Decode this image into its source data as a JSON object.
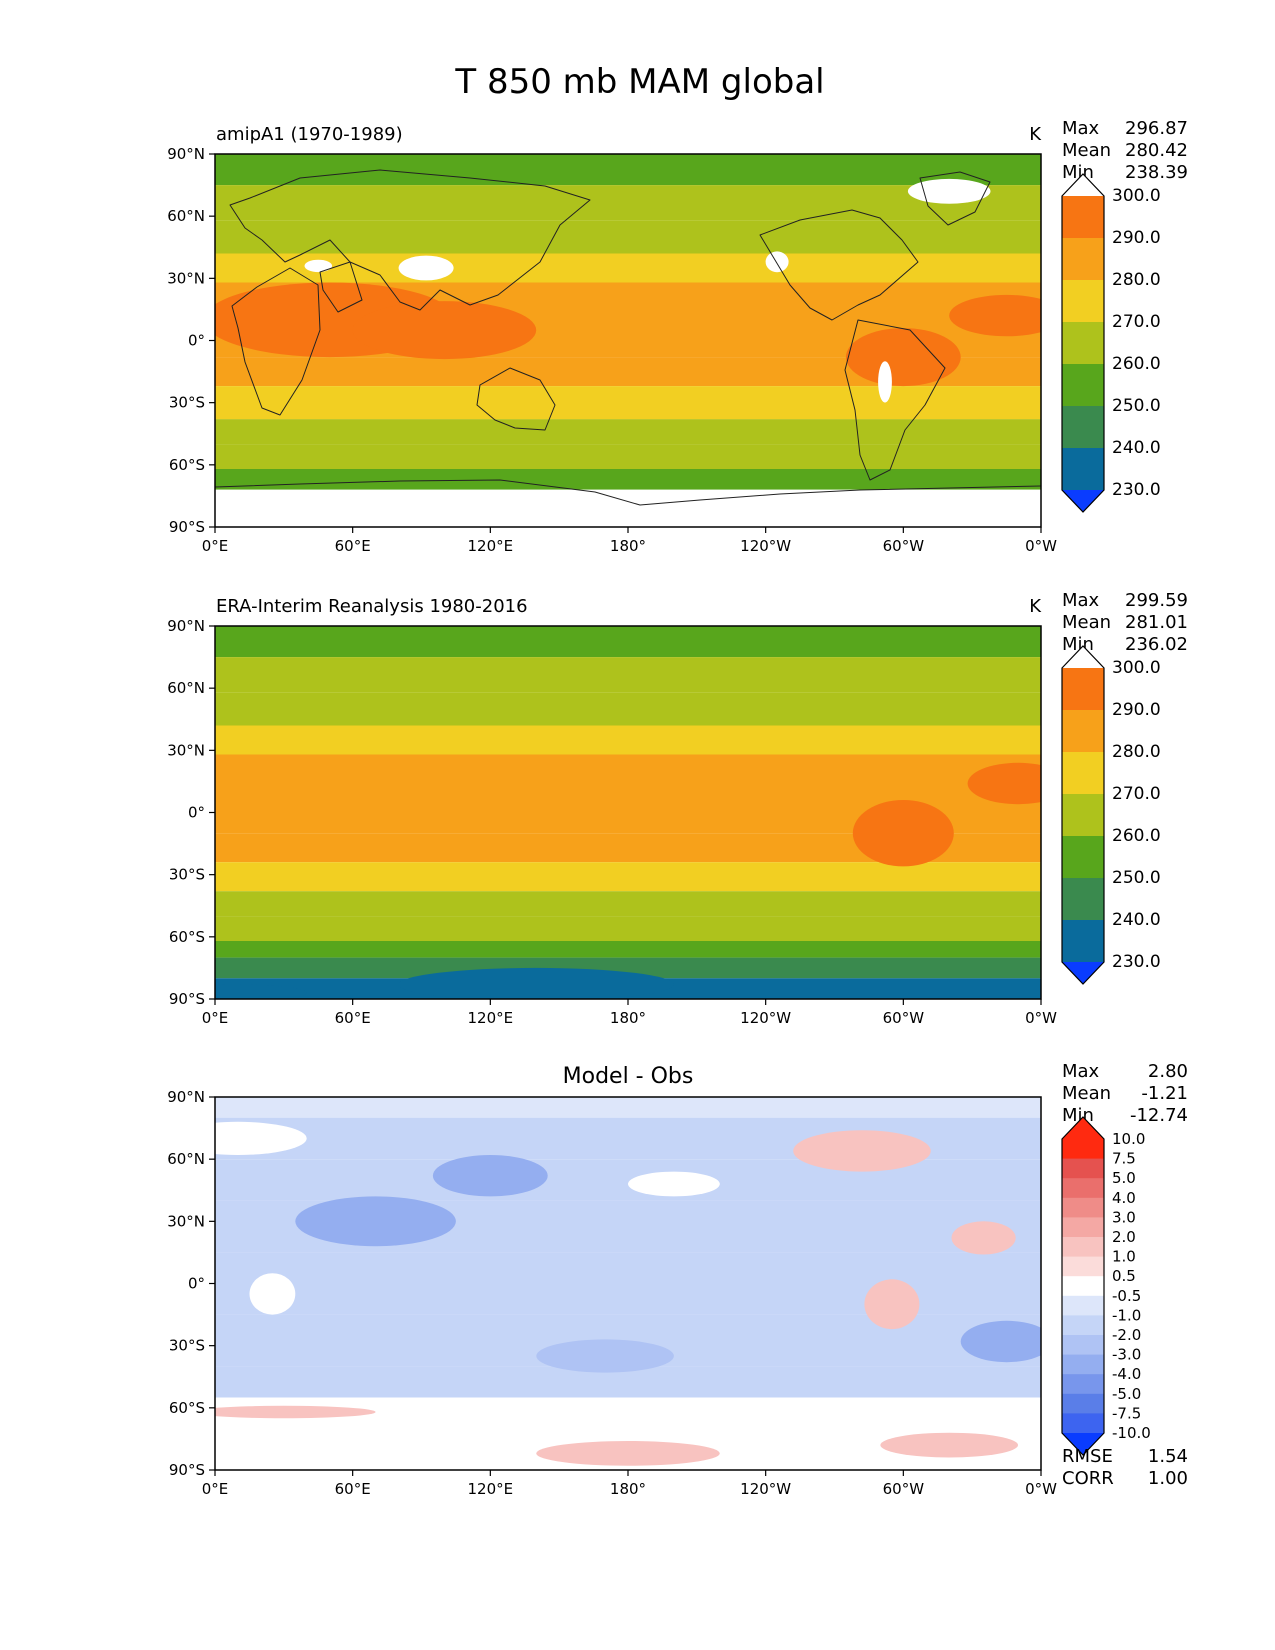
{
  "figure": {
    "title": "T 850 mb MAM global"
  },
  "axes": {
    "x_ticks": [
      "0°E",
      "60°E",
      "120°E",
      "180°",
      "120°W",
      "60°W",
      "0°W"
    ],
    "y_ticks": [
      "90°N",
      "60°N",
      "30°N",
      "0°",
      "30°S",
      "60°S",
      "90°S"
    ]
  },
  "colors": {
    "field": [
      "#0a3cff",
      "#0a6b9c",
      "#3a8a4e",
      "#58a61c",
      "#aec21c",
      "#f2cf22",
      "#f7a11a",
      "#f77513",
      "#ff2a10",
      "#ffffff"
    ],
    "diff": [
      "#0a3cff",
      "#3d64f0",
      "#5a7ee8",
      "#7896ec",
      "#94aef0",
      "#afc3f4",
      "#c5d5f7",
      "#dde6fa",
      "#ffffff",
      "#fbdcda",
      "#f8c3c0",
      "#f4a8a4",
      "#ef8c88",
      "#ea6f6c",
      "#e5524f",
      "#ff2a10"
    ]
  },
  "chart_data": [
    {
      "type": "heatmap",
      "title": "amipA1 (1970-1989)",
      "units": "K",
      "stats": {
        "max_label": "Max",
        "max": "296.87",
        "mean_label": "Mean",
        "mean": "280.42",
        "min_label": "Min",
        "min": "238.39"
      },
      "colorbar": {
        "levels": [
          230,
          240,
          250,
          260,
          270,
          280,
          290,
          300
        ],
        "labels": [
          "230.0",
          "240.0",
          "250.0",
          "260.0",
          "270.0",
          "280.0",
          "290.0",
          "300.0"
        ]
      },
      "bands": [
        {
          "lat": [
            75,
            90
          ],
          "value": 252
        },
        {
          "lat": [
            58,
            75
          ],
          "value": 262
        },
        {
          "lat": [
            42,
            58
          ],
          "value": 267
        },
        {
          "lat": [
            28,
            42
          ],
          "value": 275
        },
        {
          "lat": [
            -8,
            28
          ],
          "value": 285
        },
        {
          "lat": [
            -22,
            -8
          ],
          "value": 282
        },
        {
          "lat": [
            -38,
            -22
          ],
          "value": 276
        },
        {
          "lat": [
            -50,
            -38
          ],
          "value": 269
        },
        {
          "lat": [
            -62,
            -50
          ],
          "value": 262
        },
        {
          "lat": [
            -72,
            -62
          ],
          "value": 256
        },
        {
          "lat": [
            -90,
            -72
          ],
          "value": null
        }
      ],
      "blobs": [
        {
          "lon": 50,
          "lat": 10,
          "rlon": 55,
          "rlat": 18,
          "value": 292
        },
        {
          "lon": 100,
          "lat": 5,
          "rlon": 40,
          "rlat": 14,
          "value": 292
        },
        {
          "lon": 300,
          "lat": -8,
          "rlon": 25,
          "rlat": 14,
          "value": 291
        },
        {
          "lon": 345,
          "lat": 12,
          "rlon": 25,
          "rlat": 10,
          "value": 292
        },
        {
          "lon": 320,
          "lat": 72,
          "rlon": 18,
          "rlat": 6,
          "value": null
        },
        {
          "lon": 92,
          "lat": 35,
          "rlon": 12,
          "rlat": 6,
          "value": null
        },
        {
          "lon": 245,
          "lat": 38,
          "rlon": 5,
          "rlat": 5,
          "value": null
        },
        {
          "lon": 292,
          "lat": -20,
          "rlon": 3,
          "rlat": 10,
          "value": null
        },
        {
          "lon": 45,
          "lat": 36,
          "rlon": 6,
          "rlat": 3,
          "value": null
        }
      ]
    },
    {
      "type": "heatmap",
      "title": "ERA-Interim Reanalysis 1980-2016",
      "units": "K",
      "stats": {
        "max_label": "Max",
        "max": "299.59",
        "mean_label": "Mean",
        "mean": "281.01",
        "min_label": "Min",
        "min": "236.02"
      },
      "colorbar": {
        "levels": [
          230,
          240,
          250,
          260,
          270,
          280,
          290,
          300
        ],
        "labels": [
          "230.0",
          "240.0",
          "250.0",
          "260.0",
          "270.0",
          "280.0",
          "290.0",
          "300.0"
        ]
      },
      "bands": [
        {
          "lat": [
            75,
            90
          ],
          "value": 253
        },
        {
          "lat": [
            58,
            75
          ],
          "value": 262
        },
        {
          "lat": [
            42,
            58
          ],
          "value": 268
        },
        {
          "lat": [
            28,
            42
          ],
          "value": 276
        },
        {
          "lat": [
            -10,
            28
          ],
          "value": 287
        },
        {
          "lat": [
            -24,
            -10
          ],
          "value": 283
        },
        {
          "lat": [
            -38,
            -24
          ],
          "value": 276
        },
        {
          "lat": [
            -50,
            -38
          ],
          "value": 269
        },
        {
          "lat": [
            -62,
            -50
          ],
          "value": 263
        },
        {
          "lat": [
            -70,
            -62
          ],
          "value": 256
        },
        {
          "lat": [
            -80,
            -70
          ],
          "value": 247
        },
        {
          "lat": [
            -90,
            -80
          ],
          "value": 238
        }
      ],
      "blobs": [
        {
          "lon": 140,
          "lat": -83,
          "rlon": 60,
          "rlat": 8,
          "value": 236
        },
        {
          "lon": 10,
          "lat": -87,
          "rlon": 30,
          "rlat": 4,
          "value": 236
        },
        {
          "lon": 300,
          "lat": -10,
          "rlon": 22,
          "rlat": 16,
          "value": 292
        },
        {
          "lon": 350,
          "lat": 14,
          "rlon": 22,
          "rlat": 10,
          "value": 292
        }
      ]
    },
    {
      "type": "heatmap",
      "title": "Model - Obs",
      "units": "",
      "stats": {
        "max_label": "Max",
        "max": "2.80",
        "mean_label": "Mean",
        "mean": "-1.21",
        "min_label": "Min",
        "min": "-12.74"
      },
      "colorbar": {
        "levels": [
          -10,
          -7.5,
          -5,
          -4,
          -3,
          -2,
          -1,
          -0.5,
          0.5,
          1,
          2,
          3,
          4,
          5,
          7.5,
          10
        ],
        "labels": [
          "-10.0",
          "-7.5",
          "-5.0",
          "-4.0",
          "-3.0",
          "-2.0",
          "-1.0",
          "-0.5",
          "0.5",
          "1.0",
          "2.0",
          "3.0",
          "4.0",
          "5.0",
          "7.5",
          "10.0"
        ]
      },
      "metrics": {
        "rmse_label": "RMSE",
        "rmse": "1.54",
        "corr_label": "CORR",
        "corr": "1.00"
      },
      "bands": [
        {
          "lat": [
            80,
            90
          ],
          "value": -0.7
        },
        {
          "lat": [
            60,
            80
          ],
          "value": -1.5
        },
        {
          "lat": [
            40,
            60
          ],
          "value": -1.8
        },
        {
          "lat": [
            15,
            40
          ],
          "value": -1.5
        },
        {
          "lat": [
            -15,
            15
          ],
          "value": -1.2
        },
        {
          "lat": [
            -40,
            -15
          ],
          "value": -1.8
        },
        {
          "lat": [
            -55,
            -40
          ],
          "value": -1.3
        },
        {
          "lat": [
            -70,
            -55
          ],
          "value": 0.0
        },
        {
          "lat": [
            -90,
            -70
          ],
          "value": 0.2
        }
      ],
      "blobs": [
        {
          "lon": 70,
          "lat": 30,
          "rlon": 35,
          "rlat": 12,
          "value": -3.5
        },
        {
          "lon": 120,
          "lat": 52,
          "rlon": 25,
          "rlat": 10,
          "value": -3.2
        },
        {
          "lon": 200,
          "lat": 48,
          "rlon": 20,
          "rlat": 6,
          "value": 0.0
        },
        {
          "lon": 282,
          "lat": 64,
          "rlon": 30,
          "rlat": 10,
          "value": 1.2
        },
        {
          "lon": 295,
          "lat": -10,
          "rlon": 12,
          "rlat": 12,
          "value": 1.3
        },
        {
          "lon": 335,
          "lat": 22,
          "rlon": 14,
          "rlat": 8,
          "value": 1.0
        },
        {
          "lon": 25,
          "lat": -5,
          "rlon": 10,
          "rlat": 10,
          "value": 0.0
        },
        {
          "lon": 180,
          "lat": -82,
          "rlon": 40,
          "rlat": 6,
          "value": 1.5
        },
        {
          "lon": 320,
          "lat": -78,
          "rlon": 30,
          "rlat": 6,
          "value": 1.2
        },
        {
          "lon": 30,
          "lat": -62,
          "rlon": 40,
          "rlat": 3,
          "value": 1.0
        },
        {
          "lon": 345,
          "lat": -28,
          "rlon": 20,
          "rlat": 10,
          "value": -3.2
        },
        {
          "lon": 10,
          "lat": 70,
          "rlon": 30,
          "rlat": 8,
          "value": -0.2
        },
        {
          "lon": 170,
          "lat": -35,
          "rlon": 30,
          "rlat": 8,
          "value": -3.0
        }
      ]
    }
  ]
}
